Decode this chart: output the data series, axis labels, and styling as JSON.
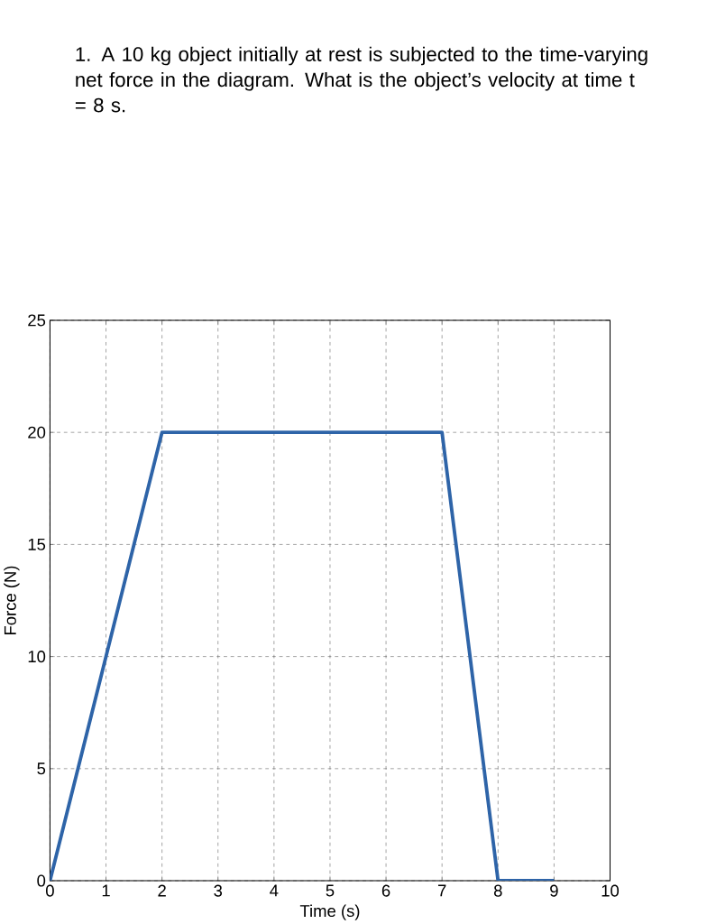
{
  "chart_data": {
    "type": "line",
    "title": "1. A 10 kg object initially at rest is subjected to the time-varying net force in the diagram. What is the object’s velocity at time t = 8 s.",
    "xlabel": "Time (s)",
    "ylabel": "Force (N)",
    "x": [
      0,
      2,
      7,
      8,
      9
    ],
    "series": [
      {
        "color": "#2e64a8",
        "values": [
          0,
          20,
          20,
          0,
          0
        ]
      }
    ],
    "xlim": [
      0,
      10
    ],
    "xticks": [
      0,
      1,
      2,
      3,
      4,
      5,
      6,
      7,
      8,
      9,
      10
    ],
    "ylim": [
      0,
      25
    ],
    "yticks": [
      0,
      5,
      10,
      15,
      20,
      25
    ],
    "grid": true,
    "marker": "none",
    "line_style": "solid"
  }
}
